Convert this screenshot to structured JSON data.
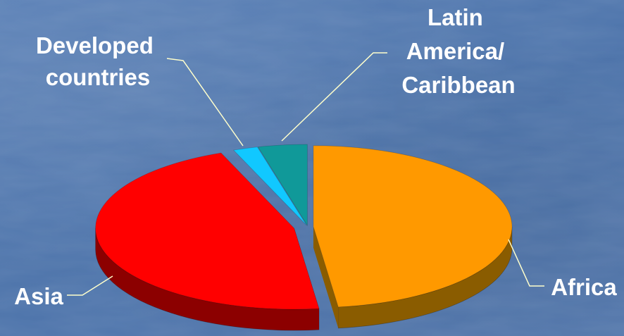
{
  "chart_data": {
    "type": "pie",
    "style": "3d-exploded",
    "categories": [
      "Africa",
      "Asia",
      "Developed countries",
      "Latin America/Caribbean"
    ],
    "values": [
      48,
      46,
      2,
      4
    ],
    "unit": "percent (estimated share)",
    "colors": [
      "#ff9900",
      "#ff0000",
      "#11c8ff",
      "#109999"
    ],
    "side_colors": [
      "#8a5c00",
      "#8c0000",
      "#0a6e8e",
      "#0a5a5a"
    ],
    "labels": {
      "africa": [
        "Africa"
      ],
      "asia": [
        "Asia"
      ],
      "developed": [
        "Developed",
        "countries"
      ],
      "latam": [
        "Latin",
        "America/",
        "Caribbean"
      ]
    },
    "title": "",
    "legend": "none (leader-line labels)"
  }
}
